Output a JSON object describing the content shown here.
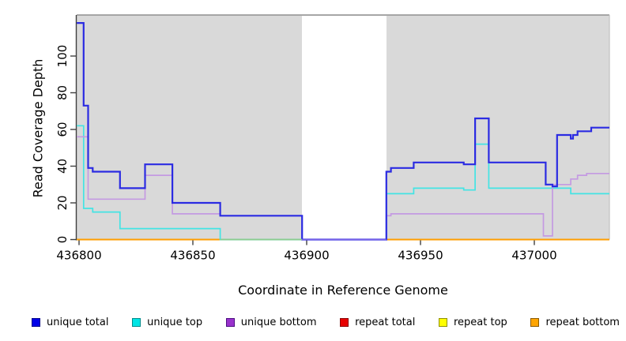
{
  "chart_data": {
    "type": "line",
    "step_style": "post",
    "title": "",
    "xlabel": "Coordinate in Reference Genome",
    "ylabel": "Read Coverage Depth",
    "xlim": [
      436799,
      437033
    ],
    "ylim": [
      0,
      122
    ],
    "x_ticks": [
      436800,
      436850,
      436900,
      436950,
      437000
    ],
    "y_ticks": [
      0,
      20,
      40,
      60,
      80,
      100
    ],
    "grid": false,
    "legend_position": "bottom",
    "panel_background": "#d9d9d9",
    "gap_region": {
      "start": 436898,
      "end": 436935,
      "color": "#ffffff"
    },
    "series": [
      {
        "name": "unique total",
        "color": "#2b2be2",
        "line_width": 2.2,
        "steps": [
          [
            436799,
            118
          ],
          [
            436802,
            73
          ],
          [
            436804,
            39
          ],
          [
            436806,
            37
          ],
          [
            436818,
            28
          ],
          [
            436829,
            41
          ],
          [
            436841,
            20
          ],
          [
            436862,
            13
          ],
          [
            436898,
            0
          ],
          [
            436935,
            37
          ],
          [
            436937,
            39
          ],
          [
            436947,
            42
          ],
          [
            436969,
            41
          ],
          [
            436974,
            66
          ],
          [
            436980,
            42
          ],
          [
            437005,
            30
          ],
          [
            437008,
            29
          ],
          [
            437010,
            57
          ],
          [
            437016,
            55
          ],
          [
            437017,
            57
          ],
          [
            437019,
            59
          ],
          [
            437025,
            61
          ],
          [
            437033,
            61
          ]
        ]
      },
      {
        "name": "unique top",
        "color": "#43e4e4",
        "line_width": 1.7,
        "steps": [
          [
            436799,
            62
          ],
          [
            436802,
            17
          ],
          [
            436806,
            15
          ],
          [
            436818,
            6
          ],
          [
            436862,
            0
          ],
          [
            436935,
            25
          ],
          [
            436947,
            28
          ],
          [
            436969,
            27
          ],
          [
            436974,
            52
          ],
          [
            436980,
            28
          ],
          [
            437016,
            25
          ],
          [
            437033,
            25
          ]
        ]
      },
      {
        "name": "unique bottom",
        "color": "#c49ae2",
        "line_width": 1.7,
        "steps": [
          [
            436799,
            56
          ],
          [
            436804,
            22
          ],
          [
            436829,
            35
          ],
          [
            436841,
            14
          ],
          [
            436862,
            13
          ],
          [
            436898,
            0
          ],
          [
            436935,
            13
          ],
          [
            436937,
            14
          ],
          [
            437004,
            2
          ],
          [
            437008,
            30
          ],
          [
            437016,
            33
          ],
          [
            437019,
            35
          ],
          [
            437023,
            36
          ],
          [
            437033,
            36
          ]
        ]
      },
      {
        "name": "repeat total",
        "color": "#dd0000",
        "line_width": 1.5,
        "steps": [
          [
            436799,
            0
          ],
          [
            437033,
            0
          ]
        ]
      },
      {
        "name": "repeat top",
        "color": "#ffff00",
        "line_width": 1.5,
        "steps": [
          [
            436799,
            0
          ],
          [
            437033,
            0
          ]
        ]
      },
      {
        "name": "repeat bottom",
        "color": "#ff9e00",
        "line_width": 2,
        "steps": [
          [
            436799,
            0
          ],
          [
            437033,
            0
          ]
        ]
      }
    ],
    "overlap_blends": [
      {
        "x1": 436862,
        "x2": 436898,
        "value": 0,
        "color": "#8ecb8e"
      },
      {
        "x1": 436898,
        "x2": 436935,
        "value": 0,
        "color": "#7a63e8"
      }
    ]
  },
  "legend": {
    "items": [
      {
        "label": "unique total",
        "fill": "#0000e8",
        "border": "#00008b"
      },
      {
        "label": "unique top",
        "fill": "#00e5e5",
        "border": "#008b8b"
      },
      {
        "label": "unique bottom",
        "fill": "#9932cc",
        "border": "#4b0d82"
      },
      {
        "label": "repeat total",
        "fill": "#e80000",
        "border": "#8b0000"
      },
      {
        "label": "repeat top",
        "fill": "#ffff00",
        "border": "#8f8f00"
      },
      {
        "label": "repeat bottom",
        "fill": "#ffa500",
        "border": "#8b5a00"
      }
    ]
  },
  "axis_style": {
    "tick_color": "#404040",
    "top_border": "#8f8f8f",
    "right_border": "#c2c2c2",
    "bottom_border": "#9a9a9a",
    "tick_label_color": "#000000"
  }
}
